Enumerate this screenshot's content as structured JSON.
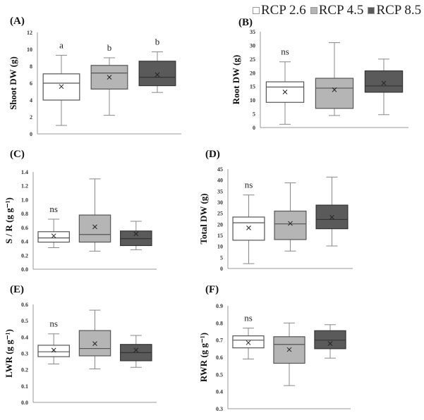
{
  "legend": [
    {
      "label": "RCP 2.6",
      "color": "#ffffff"
    },
    {
      "label": "RCP 4.5",
      "color": "#b5b5b5"
    },
    {
      "label": "RCP 8.5",
      "color": "#5a5a5a"
    }
  ],
  "chart_data": [
    {
      "type": "box",
      "panel": "(A)",
      "ylabel": "Shoot  DW (g)",
      "ylim": [
        0,
        12
      ],
      "ticks": [
        "0",
        "2",
        "4",
        "6",
        "8",
        "10",
        "12"
      ],
      "series": [
        {
          "name": "RCP 2.6",
          "min": 1.0,
          "q1": 4.0,
          "median": 6.0,
          "q3": 7.1,
          "max": 9.3,
          "mean": 5.6,
          "annotation": "a"
        },
        {
          "name": "RCP 4.5",
          "min": 2.2,
          "q1": 5.3,
          "median": 7.2,
          "q3": 8.1,
          "max": 9.0,
          "mean": 6.7,
          "annotation": "b"
        },
        {
          "name": "RCP 8.5",
          "min": 4.9,
          "q1": 5.7,
          "median": 6.7,
          "q3": 8.6,
          "max": 9.7,
          "mean": 7.0,
          "annotation": "b"
        }
      ]
    },
    {
      "type": "box",
      "panel": "(B)",
      "ylabel": "Root  DW (g)",
      "ylim": [
        0,
        35
      ],
      "ticks": [
        "0",
        "5",
        "10",
        "15",
        "20",
        "25",
        "30",
        "35"
      ],
      "series": [
        {
          "name": "RCP 2.6",
          "min": 1.2,
          "q1": 9.2,
          "median": 14.8,
          "q3": 16.7,
          "max": 24,
          "mean": 13.0,
          "annotation": "ns"
        },
        {
          "name": "RCP 4.5",
          "min": 4.4,
          "q1": 7.0,
          "median": 14.4,
          "q3": 18.0,
          "max": 31,
          "mean": 13.8,
          "annotation": ""
        },
        {
          "name": "RCP 8.5",
          "min": 4.7,
          "q1": 12.9,
          "median": 15.2,
          "q3": 20.7,
          "max": 25,
          "mean": 16.2,
          "annotation": ""
        }
      ]
    },
    {
      "type": "box",
      "panel": "(C)",
      "ylabel": "S / R (g g⁻¹)",
      "ylim": [
        0,
        1.4
      ],
      "ticks": [
        "0.0",
        "0.2",
        "0.4",
        "0.6",
        "0.8",
        "1.0",
        "1.2",
        "1.4"
      ],
      "series": [
        {
          "name": "RCP 2.6",
          "min": 0.31,
          "q1": 0.39,
          "median": 0.45,
          "q3": 0.54,
          "max": 0.72,
          "mean": 0.48,
          "annotation": "ns"
        },
        {
          "name": "RCP 4.5",
          "min": 0.26,
          "q1": 0.39,
          "median": 0.5,
          "q3": 0.78,
          "max": 1.3,
          "mean": 0.61,
          "annotation": ""
        },
        {
          "name": "RCP 8.5",
          "min": 0.28,
          "q1": 0.34,
          "median": 0.44,
          "q3": 0.55,
          "max": 0.69,
          "mean": 0.51,
          "annotation": ""
        }
      ]
    },
    {
      "type": "box",
      "panel": "(D)",
      "ylabel": "Total  DW (g)",
      "ylim": [
        0,
        45
      ],
      "ticks": [
        "0",
        "5",
        "10",
        "15",
        "20",
        "25",
        "30",
        "35",
        "40",
        "45"
      ],
      "series": [
        {
          "name": "RCP 2.6",
          "min": 2.2,
          "q1": 12.8,
          "median": 20.7,
          "q3": 23.3,
          "max": 33.3,
          "mean": 18.4,
          "annotation": "ns"
        },
        {
          "name": "RCP 4.5",
          "min": 7.9,
          "q1": 13.1,
          "median": 20.2,
          "q3": 26.0,
          "max": 38.8,
          "mean": 20.4,
          "annotation": ""
        },
        {
          "name": "RCP 8.5",
          "min": 10.2,
          "q1": 18.0,
          "median": 22.2,
          "q3": 28.7,
          "max": 41.4,
          "mean": 23.2,
          "annotation": ""
        }
      ]
    },
    {
      "type": "box",
      "panel": "(E)",
      "ylabel": "LWR (g g⁻¹)",
      "ylim": [
        0,
        0.6
      ],
      "ticks": [
        "0.0",
        "0.1",
        "0.2",
        "0.3",
        "0.4",
        "0.5",
        "0.6"
      ],
      "series": [
        {
          "name": "RCP 2.6",
          "min": 0.235,
          "q1": 0.28,
          "median": 0.31,
          "q3": 0.35,
          "max": 0.42,
          "mean": 0.32,
          "annotation": "ns"
        },
        {
          "name": "RCP 4.5",
          "min": 0.205,
          "q1": 0.285,
          "median": 0.33,
          "q3": 0.44,
          "max": 0.565,
          "mean": 0.36,
          "annotation": ""
        },
        {
          "name": "RCP 8.5",
          "min": 0.215,
          "q1": 0.255,
          "median": 0.305,
          "q3": 0.355,
          "max": 0.41,
          "mean": 0.32,
          "annotation": ""
        }
      ]
    },
    {
      "type": "box",
      "panel": "(F)",
      "ylabel": "RWR (g g⁻¹)",
      "ylim": [
        0.3,
        0.9
      ],
      "ticks": [
        "0.3",
        "0.4",
        "0.5",
        "0.6",
        "0.7",
        "0.8",
        "0.9"
      ],
      "series": [
        {
          "name": "RCP 2.6",
          "min": 0.59,
          "q1": 0.655,
          "median": 0.7,
          "q3": 0.725,
          "max": 0.77,
          "mean": 0.685,
          "annotation": "ns"
        },
        {
          "name": "RCP 4.5",
          "min": 0.435,
          "q1": 0.565,
          "median": 0.675,
          "q3": 0.72,
          "max": 0.8,
          "mean": 0.645,
          "annotation": ""
        },
        {
          "name": "RCP 8.5",
          "min": 0.595,
          "q1": 0.65,
          "median": 0.7,
          "q3": 0.755,
          "max": 0.79,
          "mean": 0.68,
          "annotation": ""
        }
      ]
    }
  ]
}
